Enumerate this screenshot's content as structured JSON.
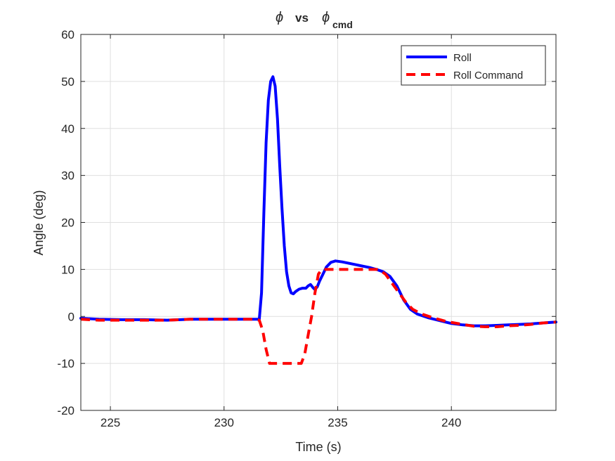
{
  "chart_data": {
    "type": "line",
    "title": {
      "main": "ϕ",
      "vs": "vs",
      "cmd_main": "ϕ",
      "cmd_sub": "cmd"
    },
    "xlabel": "Time (s)",
    "ylabel": "Angle (deg)",
    "xlim": [
      223.7,
      244.6
    ],
    "ylim": [
      -20,
      60
    ],
    "xticks": [
      225,
      230,
      235,
      240
    ],
    "xtick_labels": [
      "225",
      "230",
      "235",
      "240"
    ],
    "yticks": [
      -20,
      -10,
      0,
      10,
      20,
      30,
      40,
      50,
      60
    ],
    "ytick_labels": [
      "-20",
      "-10",
      "0",
      "10",
      "20",
      "30",
      "40",
      "50",
      "60"
    ],
    "grid": true,
    "legend_position": "top-right",
    "series": [
      {
        "name": "Roll",
        "color": "#0000ff",
        "style": "solid",
        "x": [
          223.7,
          224.5,
          225.5,
          226.5,
          227.5,
          228.5,
          229.5,
          230.5,
          231.3,
          231.55,
          231.65,
          231.75,
          231.85,
          231.95,
          232.05,
          232.15,
          232.25,
          232.35,
          232.45,
          232.55,
          232.65,
          232.75,
          232.85,
          232.95,
          233.05,
          233.15,
          233.3,
          233.45,
          233.6,
          233.7,
          233.8,
          233.9,
          234.0,
          234.1,
          234.2,
          234.35,
          234.5,
          234.7,
          234.9,
          235.2,
          235.5,
          235.8,
          236.1,
          236.4,
          236.7,
          237.0,
          237.3,
          237.6,
          237.9,
          238.2,
          238.5,
          239.0,
          239.5,
          240.0,
          240.5,
          241.0,
          241.5,
          242.0,
          242.5,
          243.0,
          243.5,
          244.0,
          244.6
        ],
        "y": [
          -0.4,
          -0.6,
          -0.7,
          -0.7,
          -0.8,
          -0.6,
          -0.6,
          -0.6,
          -0.6,
          -0.6,
          5,
          22,
          37,
          46,
          50,
          51,
          49,
          42,
          32,
          23,
          15,
          9.5,
          6.5,
          5,
          4.8,
          5.3,
          5.8,
          6.0,
          6.0,
          6.5,
          6.8,
          6.2,
          5.7,
          6.3,
          7.5,
          9.0,
          10.5,
          11.5,
          11.8,
          11.6,
          11.3,
          11.0,
          10.7,
          10.4,
          10.0,
          9.5,
          8.5,
          6.5,
          3.5,
          1.5,
          0.5,
          -0.3,
          -0.9,
          -1.5,
          -1.8,
          -2.0,
          -2.0,
          -1.9,
          -1.8,
          -1.7,
          -1.6,
          -1.4,
          -1.2
        ]
      },
      {
        "name": "Roll Command",
        "color": "#ff0000",
        "style": "dashed",
        "x": [
          223.7,
          224.5,
          225.5,
          226.5,
          227.5,
          228.5,
          229.5,
          230.5,
          231.3,
          231.55,
          231.7,
          231.85,
          232.0,
          232.5,
          233.0,
          233.4,
          233.55,
          233.7,
          233.85,
          234.0,
          234.15,
          234.3,
          234.5,
          235.0,
          235.5,
          236.0,
          236.5,
          236.8,
          237.1,
          237.4,
          237.7,
          238.0,
          238.3,
          238.7,
          239.2,
          239.8,
          240.5,
          241.0,
          241.5,
          242.0,
          242.5,
          243.0,
          243.5,
          244.0,
          244.6
        ],
        "y": [
          -0.6,
          -0.8,
          -0.8,
          -0.8,
          -0.8,
          -0.6,
          -0.6,
          -0.6,
          -0.6,
          -0.8,
          -3,
          -7,
          -10,
          -10,
          -10,
          -10,
          -8,
          -4,
          0,
          5,
          9,
          10,
          10,
          10,
          10,
          10,
          10,
          10,
          9,
          7,
          5,
          3,
          1.5,
          0.5,
          -0.3,
          -1.1,
          -1.7,
          -2.1,
          -2.2,
          -2.2,
          -2.0,
          -1.9,
          -1.7,
          -1.4,
          -1.2
        ]
      }
    ]
  }
}
